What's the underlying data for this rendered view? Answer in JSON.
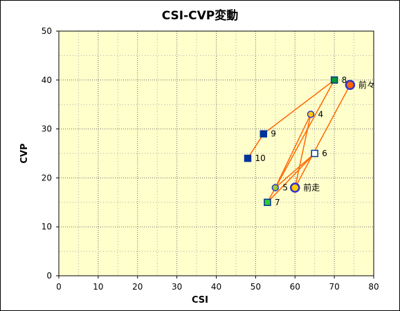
{
  "chart_data": {
    "type": "scatter",
    "title": "CSI-CVP変動",
    "xlabel": "CSI",
    "ylabel": "CVP",
    "xlim": [
      0,
      80
    ],
    "ylim": [
      0,
      50
    ],
    "xticks": [
      0,
      10,
      20,
      30,
      40,
      50,
      60,
      70,
      80
    ],
    "yticks": [
      0,
      10,
      20,
      30,
      40,
      50
    ],
    "grid": true,
    "plot_background": "#ffffcc",
    "line_color": "#ff6600",
    "points": [
      {
        "label": "前々",
        "x": 74,
        "y": 39,
        "marker": "circle",
        "fill": "#ff6600",
        "stroke": "#3333cc",
        "size": "large"
      },
      {
        "label": "前走",
        "x": 60,
        "y": 18,
        "marker": "circle",
        "fill": "#ffcc00",
        "stroke": "#3333cc",
        "size": "large"
      },
      {
        "label": "4",
        "x": 64,
        "y": 33,
        "marker": "circle",
        "fill": "#ffcc00",
        "stroke": "#3333cc",
        "size": "small"
      },
      {
        "label": "5",
        "x": 55,
        "y": 18,
        "marker": "circle",
        "fill": "#99cc33",
        "stroke": "#3333cc",
        "size": "small"
      },
      {
        "label": "6",
        "x": 65,
        "y": 25,
        "marker": "square",
        "fill": "#ffffff",
        "stroke": "#003399",
        "size": "small"
      },
      {
        "label": "7",
        "x": 53,
        "y": 15,
        "marker": "square",
        "fill": "#33cc33",
        "stroke": "#003399",
        "size": "small"
      },
      {
        "label": "8",
        "x": 70,
        "y": 40,
        "marker": "square",
        "fill": "#009933",
        "stroke": "#003399",
        "size": "small"
      },
      {
        "label": "9",
        "x": 52,
        "y": 29,
        "marker": "square",
        "fill": "#003399",
        "stroke": "#003399",
        "size": "small"
      },
      {
        "label": "10",
        "x": 48,
        "y": 24,
        "marker": "square",
        "fill": "#003399",
        "stroke": "#003399",
        "size": "small"
      }
    ],
    "connections": [
      "10",
      "9",
      "8",
      "7",
      "6",
      "5",
      "4",
      "前走",
      "前々"
    ]
  }
}
